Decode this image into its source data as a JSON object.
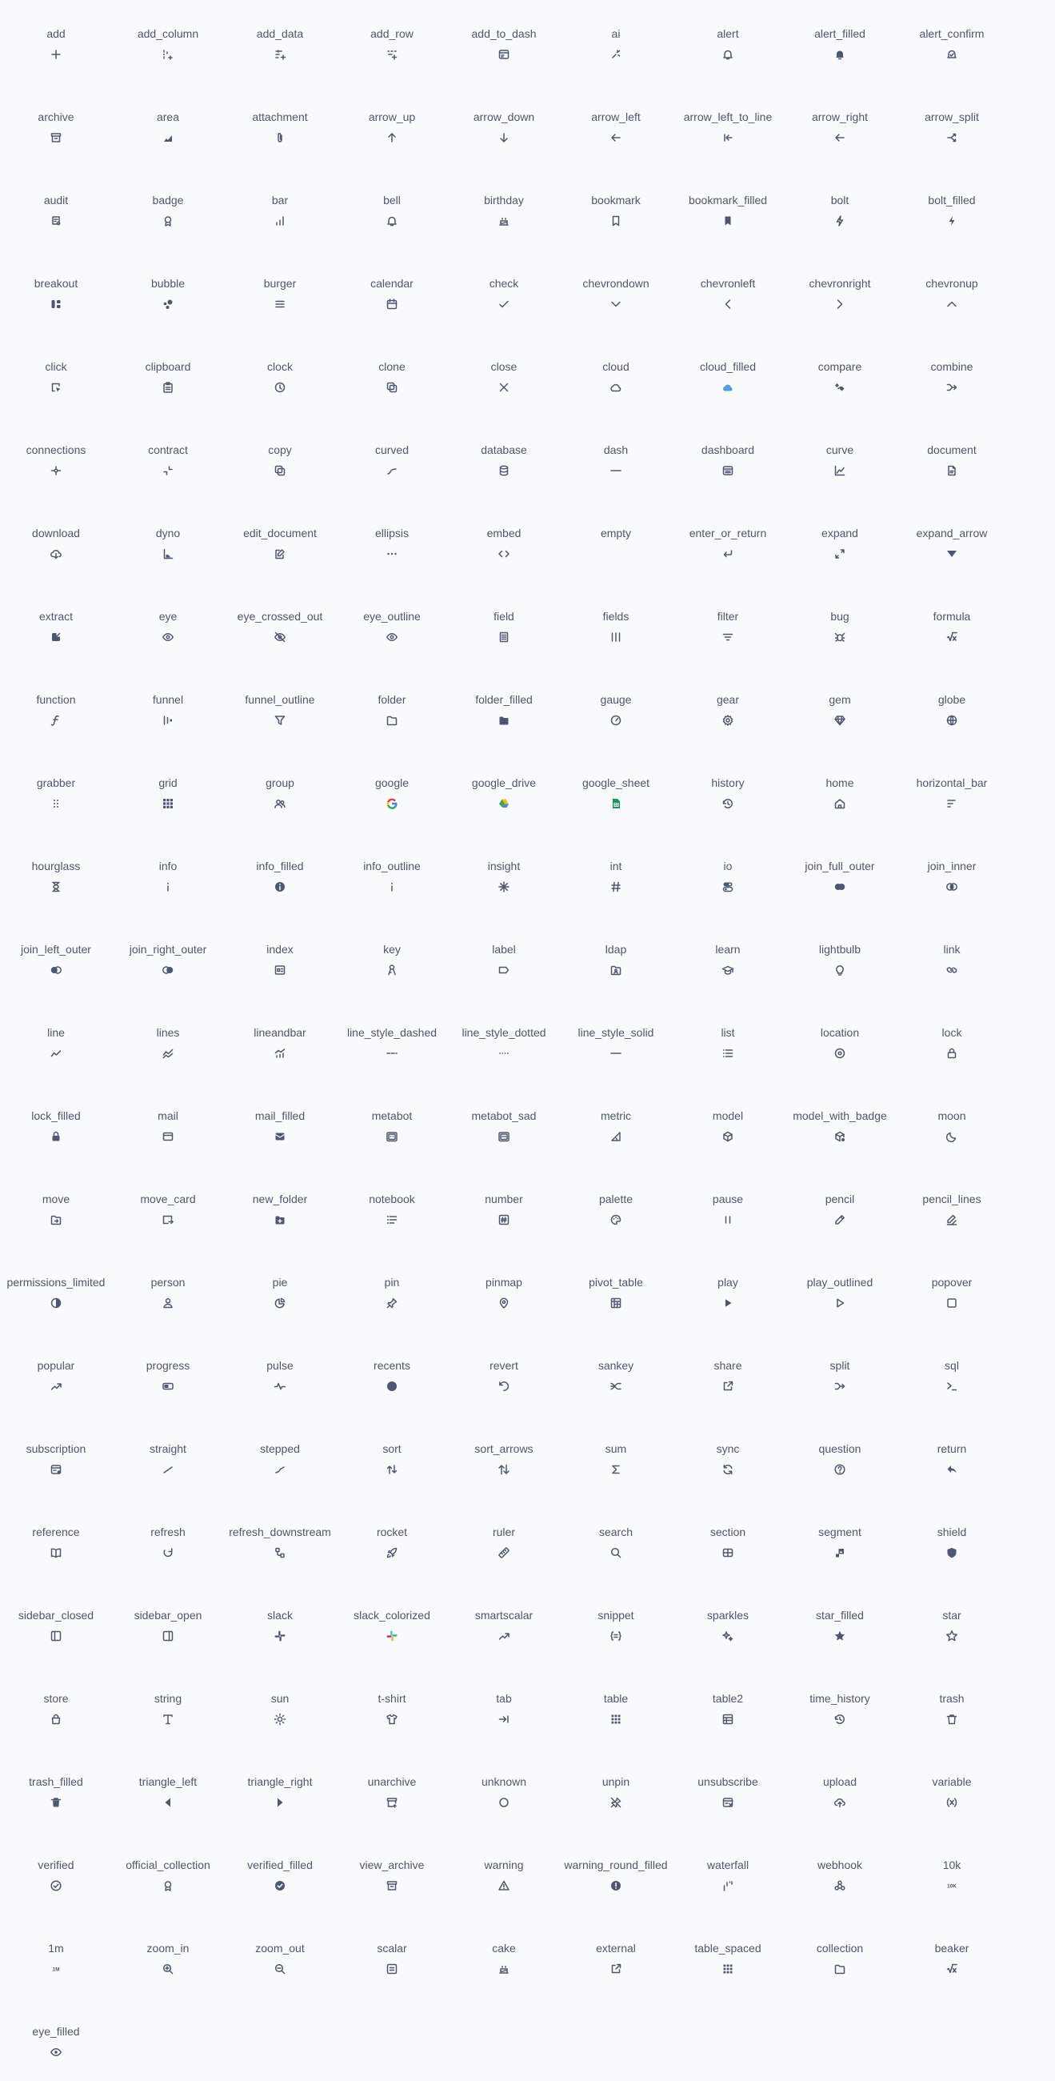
{
  "icons": [
    {
      "name": "add",
      "icon": "add-icon"
    },
    {
      "name": "add_column",
      "icon": "add_column-icon"
    },
    {
      "name": "add_data",
      "icon": "add_data-icon"
    },
    {
      "name": "add_row",
      "icon": "add_row-icon"
    },
    {
      "name": "add_to_dash",
      "icon": "add_to_dash-icon"
    },
    {
      "name": "ai",
      "icon": "ai-icon"
    },
    {
      "name": "alert",
      "icon": "alert-icon"
    },
    {
      "name": "alert_filled",
      "icon": "alert_filled-icon"
    },
    {
      "name": "alert_confirm",
      "icon": "alert_confirm-icon"
    },
    {
      "name": "archive",
      "icon": "archive-icon"
    },
    {
      "name": "area",
      "icon": "area-icon"
    },
    {
      "name": "attachment",
      "icon": "attachment-icon"
    },
    {
      "name": "arrow_up",
      "icon": "arrow_up-icon"
    },
    {
      "name": "arrow_down",
      "icon": "arrow_down-icon"
    },
    {
      "name": "arrow_left",
      "icon": "arrow_left-icon"
    },
    {
      "name": "arrow_left_to_line",
      "icon": "arrow_left_to_line-icon"
    },
    {
      "name": "arrow_right",
      "icon": "arrow_right-icon"
    },
    {
      "name": "arrow_split",
      "icon": "arrow_split-icon"
    },
    {
      "name": "audit",
      "icon": "audit-icon"
    },
    {
      "name": "badge",
      "icon": "badge-icon"
    },
    {
      "name": "bar",
      "icon": "bar-icon"
    },
    {
      "name": "bell",
      "icon": "bell-icon"
    },
    {
      "name": "birthday",
      "icon": "birthday-icon"
    },
    {
      "name": "bookmark",
      "icon": "bookmark-icon"
    },
    {
      "name": "bookmark_filled",
      "icon": "bookmark_filled-icon"
    },
    {
      "name": "bolt",
      "icon": "bolt-icon"
    },
    {
      "name": "bolt_filled",
      "icon": "bolt_filled-icon"
    },
    {
      "name": "breakout",
      "icon": "breakout-icon"
    },
    {
      "name": "bubble",
      "icon": "bubble-icon"
    },
    {
      "name": "burger",
      "icon": "burger-icon"
    },
    {
      "name": "calendar",
      "icon": "calendar-icon"
    },
    {
      "name": "check",
      "icon": "check-icon"
    },
    {
      "name": "chevrondown",
      "icon": "chevrondown-icon"
    },
    {
      "name": "chevronleft",
      "icon": "chevronleft-icon"
    },
    {
      "name": "chevronright",
      "icon": "chevronright-icon"
    },
    {
      "name": "chevronup",
      "icon": "chevronup-icon"
    },
    {
      "name": "click",
      "icon": "click-icon"
    },
    {
      "name": "clipboard",
      "icon": "clipboard-icon"
    },
    {
      "name": "clock",
      "icon": "clock-icon"
    },
    {
      "name": "clone",
      "icon": "clone-icon"
    },
    {
      "name": "close",
      "icon": "close-icon"
    },
    {
      "name": "cloud",
      "icon": "cloud-icon"
    },
    {
      "name": "cloud_filled",
      "icon": "cloud_filled-icon"
    },
    {
      "name": "compare",
      "icon": "compare-icon"
    },
    {
      "name": "combine",
      "icon": "combine-icon"
    },
    {
      "name": "connections",
      "icon": "connections-icon"
    },
    {
      "name": "contract",
      "icon": "contract-icon"
    },
    {
      "name": "copy",
      "icon": "copy-icon"
    },
    {
      "name": "curved",
      "icon": "curved-icon"
    },
    {
      "name": "database",
      "icon": "database-icon"
    },
    {
      "name": "dash",
      "icon": "dash-icon"
    },
    {
      "name": "dashboard",
      "icon": "dashboard-icon"
    },
    {
      "name": "curve",
      "icon": "curve-icon"
    },
    {
      "name": "document",
      "icon": "document-icon"
    },
    {
      "name": "download",
      "icon": "download-icon"
    },
    {
      "name": "dyno",
      "icon": "dyno-icon"
    },
    {
      "name": "edit_document",
      "icon": "edit_document-icon"
    },
    {
      "name": "ellipsis",
      "icon": "ellipsis-icon"
    },
    {
      "name": "embed",
      "icon": "embed-icon"
    },
    {
      "name": "empty",
      "icon": "empty-icon"
    },
    {
      "name": "enter_or_return",
      "icon": "enter_or_return-icon"
    },
    {
      "name": "expand",
      "icon": "expand-icon"
    },
    {
      "name": "expand_arrow",
      "icon": "expand_arrow-icon"
    },
    {
      "name": "extract",
      "icon": "extract-icon"
    },
    {
      "name": "eye",
      "icon": "eye-icon"
    },
    {
      "name": "eye_crossed_out",
      "icon": "eye_crossed_out-icon"
    },
    {
      "name": "eye_outline",
      "icon": "eye_outline-icon"
    },
    {
      "name": "field",
      "icon": "field-icon"
    },
    {
      "name": "fields",
      "icon": "fields-icon"
    },
    {
      "name": "filter",
      "icon": "filter-icon"
    },
    {
      "name": "bug",
      "icon": "bug-icon"
    },
    {
      "name": "formula",
      "icon": "formula-icon"
    },
    {
      "name": "function",
      "icon": "function-icon"
    },
    {
      "name": "funnel",
      "icon": "funnel-icon"
    },
    {
      "name": "funnel_outline",
      "icon": "funnel_outline-icon"
    },
    {
      "name": "folder",
      "icon": "folder-icon"
    },
    {
      "name": "folder_filled",
      "icon": "folder_filled-icon"
    },
    {
      "name": "gauge",
      "icon": "gauge-icon"
    },
    {
      "name": "gear",
      "icon": "gear-icon"
    },
    {
      "name": "gem",
      "icon": "gem-icon"
    },
    {
      "name": "globe",
      "icon": "globe-icon"
    },
    {
      "name": "grabber",
      "icon": "grabber-icon"
    },
    {
      "name": "grid",
      "icon": "grid-icon"
    },
    {
      "name": "group",
      "icon": "group-icon"
    },
    {
      "name": "google",
      "icon": "google-icon"
    },
    {
      "name": "google_drive",
      "icon": "google_drive-icon"
    },
    {
      "name": "google_sheet",
      "icon": "google_sheet-icon"
    },
    {
      "name": "history",
      "icon": "history-icon"
    },
    {
      "name": "home",
      "icon": "home-icon"
    },
    {
      "name": "horizontal_bar",
      "icon": "horizontal_bar-icon"
    },
    {
      "name": "hourglass",
      "icon": "hourglass-icon"
    },
    {
      "name": "info",
      "icon": "info-icon"
    },
    {
      "name": "info_filled",
      "icon": "info_filled-icon"
    },
    {
      "name": "info_outline",
      "icon": "info_outline-icon"
    },
    {
      "name": "insight",
      "icon": "insight-icon"
    },
    {
      "name": "int",
      "icon": "int-icon"
    },
    {
      "name": "io",
      "icon": "io-icon"
    },
    {
      "name": "join_full_outer",
      "icon": "join_full_outer-icon"
    },
    {
      "name": "join_inner",
      "icon": "join_inner-icon"
    },
    {
      "name": "join_left_outer",
      "icon": "join_left_outer-icon"
    },
    {
      "name": "join_right_outer",
      "icon": "join_right_outer-icon"
    },
    {
      "name": "index",
      "icon": "index-icon"
    },
    {
      "name": "key",
      "icon": "key-icon"
    },
    {
      "name": "label",
      "icon": "label-icon"
    },
    {
      "name": "ldap",
      "icon": "ldap-icon"
    },
    {
      "name": "learn",
      "icon": "learn-icon"
    },
    {
      "name": "lightbulb",
      "icon": "lightbulb-icon"
    },
    {
      "name": "link",
      "icon": "link-icon"
    },
    {
      "name": "line",
      "icon": "line-icon"
    },
    {
      "name": "lines",
      "icon": "lines-icon"
    },
    {
      "name": "lineandbar",
      "icon": "lineandbar-icon"
    },
    {
      "name": "line_style_dashed",
      "icon": "line_style_dashed-icon"
    },
    {
      "name": "line_style_dotted",
      "icon": "line_style_dotted-icon"
    },
    {
      "name": "line_style_solid",
      "icon": "line_style_solid-icon"
    },
    {
      "name": "list",
      "icon": "list-icon"
    },
    {
      "name": "location",
      "icon": "location-icon"
    },
    {
      "name": "lock",
      "icon": "lock-icon"
    },
    {
      "name": "lock_filled",
      "icon": "lock_filled-icon"
    },
    {
      "name": "mail",
      "icon": "mail-icon"
    },
    {
      "name": "mail_filled",
      "icon": "mail_filled-icon"
    },
    {
      "name": "metabot",
      "icon": "metabot-icon"
    },
    {
      "name": "metabot_sad",
      "icon": "metabot_sad-icon"
    },
    {
      "name": "metric",
      "icon": "metric-icon"
    },
    {
      "name": "model",
      "icon": "model-icon"
    },
    {
      "name": "model_with_badge",
      "icon": "model_with_badge-icon"
    },
    {
      "name": "moon",
      "icon": "moon-icon"
    },
    {
      "name": "move",
      "icon": "move-icon"
    },
    {
      "name": "move_card",
      "icon": "move_card-icon"
    },
    {
      "name": "new_folder",
      "icon": "new_folder-icon"
    },
    {
      "name": "notebook",
      "icon": "notebook-icon"
    },
    {
      "name": "number",
      "icon": "number-icon"
    },
    {
      "name": "palette",
      "icon": "palette-icon"
    },
    {
      "name": "pause",
      "icon": "pause-icon"
    },
    {
      "name": "pencil",
      "icon": "pencil-icon"
    },
    {
      "name": "pencil_lines",
      "icon": "pencil_lines-icon"
    },
    {
      "name": "permissions_limited",
      "icon": "permissions_limited-icon"
    },
    {
      "name": "person",
      "icon": "person-icon"
    },
    {
      "name": "pie",
      "icon": "pie-icon"
    },
    {
      "name": "pin",
      "icon": "pin-icon"
    },
    {
      "name": "pinmap",
      "icon": "pinmap-icon"
    },
    {
      "name": "pivot_table",
      "icon": "pivot_table-icon"
    },
    {
      "name": "play",
      "icon": "play-icon"
    },
    {
      "name": "play_outlined",
      "icon": "play_outlined-icon"
    },
    {
      "name": "popover",
      "icon": "popover-icon"
    },
    {
      "name": "popular",
      "icon": "popular-icon"
    },
    {
      "name": "progress",
      "icon": "progress-icon"
    },
    {
      "name": "pulse",
      "icon": "pulse-icon"
    },
    {
      "name": "recents",
      "icon": "recents-icon"
    },
    {
      "name": "revert",
      "icon": "revert-icon"
    },
    {
      "name": "sankey",
      "icon": "sankey-icon"
    },
    {
      "name": "share",
      "icon": "share-icon"
    },
    {
      "name": "split",
      "icon": "split-icon"
    },
    {
      "name": "sql",
      "icon": "sql-icon"
    },
    {
      "name": "subscription",
      "icon": "subscription-icon"
    },
    {
      "name": "straight",
      "icon": "straight-icon"
    },
    {
      "name": "stepped",
      "icon": "stepped-icon"
    },
    {
      "name": "sort",
      "icon": "sort-icon"
    },
    {
      "name": "sort_arrows",
      "icon": "sort_arrows-icon"
    },
    {
      "name": "sum",
      "icon": "sum-icon"
    },
    {
      "name": "sync",
      "icon": "sync-icon"
    },
    {
      "name": "question",
      "icon": "question-icon"
    },
    {
      "name": "return",
      "icon": "return-icon"
    },
    {
      "name": "reference",
      "icon": "reference-icon"
    },
    {
      "name": "refresh",
      "icon": "refresh-icon"
    },
    {
      "name": "refresh_downstream",
      "icon": "refresh_downstream-icon"
    },
    {
      "name": "rocket",
      "icon": "rocket-icon"
    },
    {
      "name": "ruler",
      "icon": "ruler-icon"
    },
    {
      "name": "search",
      "icon": "search-icon"
    },
    {
      "name": "section",
      "icon": "section-icon"
    },
    {
      "name": "segment",
      "icon": "segment-icon"
    },
    {
      "name": "shield",
      "icon": "shield-icon"
    },
    {
      "name": "sidebar_closed",
      "icon": "sidebar_closed-icon"
    },
    {
      "name": "sidebar_open",
      "icon": "sidebar_open-icon"
    },
    {
      "name": "slack",
      "icon": "slack-icon"
    },
    {
      "name": "slack_colorized",
      "icon": "slack_colorized-icon"
    },
    {
      "name": "smartscalar",
      "icon": "smartscalar-icon"
    },
    {
      "name": "snippet",
      "icon": "snippet-icon"
    },
    {
      "name": "sparkles",
      "icon": "sparkles-icon"
    },
    {
      "name": "star_filled",
      "icon": "star_filled-icon"
    },
    {
      "name": "star",
      "icon": "star-icon"
    },
    {
      "name": "store",
      "icon": "store-icon"
    },
    {
      "name": "string",
      "icon": "string-icon"
    },
    {
      "name": "sun",
      "icon": "sun-icon"
    },
    {
      "name": "t-shirt",
      "icon": "t-shirt-icon"
    },
    {
      "name": "tab",
      "icon": "tab-icon"
    },
    {
      "name": "table",
      "icon": "table-icon"
    },
    {
      "name": "table2",
      "icon": "table2-icon"
    },
    {
      "name": "time_history",
      "icon": "time_history-icon"
    },
    {
      "name": "trash",
      "icon": "trash-icon"
    },
    {
      "name": "trash_filled",
      "icon": "trash_filled-icon"
    },
    {
      "name": "triangle_left",
      "icon": "triangle_left-icon"
    },
    {
      "name": "triangle_right",
      "icon": "triangle_right-icon"
    },
    {
      "name": "unarchive",
      "icon": "unarchive-icon"
    },
    {
      "name": "unknown",
      "icon": "unknown-icon"
    },
    {
      "name": "unpin",
      "icon": "unpin-icon"
    },
    {
      "name": "unsubscribe",
      "icon": "unsubscribe-icon"
    },
    {
      "name": "upload",
      "icon": "upload-icon"
    },
    {
      "name": "variable",
      "icon": "variable-icon"
    },
    {
      "name": "verified",
      "icon": "verified-icon"
    },
    {
      "name": "official_collection",
      "icon": "official_collection-icon"
    },
    {
      "name": "verified_filled",
      "icon": "verified_filled-icon"
    },
    {
      "name": "view_archive",
      "icon": "view_archive-icon"
    },
    {
      "name": "warning",
      "icon": "warning-icon"
    },
    {
      "name": "warning_round_filled",
      "icon": "warning_round_filled-icon"
    },
    {
      "name": "waterfall",
      "icon": "waterfall-icon"
    },
    {
      "name": "webhook",
      "icon": "webhook-icon"
    },
    {
      "name": "10k",
      "icon": "10k-icon"
    },
    {
      "name": "1m",
      "icon": "1m-icon"
    },
    {
      "name": "zoom_in",
      "icon": "zoom_in-icon"
    },
    {
      "name": "zoom_out",
      "icon": "zoom_out-icon"
    },
    {
      "name": "scalar",
      "icon": "scalar-icon"
    },
    {
      "name": "cake",
      "icon": "cake-icon"
    },
    {
      "name": "external",
      "icon": "external-icon"
    },
    {
      "name": "table_spaced",
      "icon": "table_spaced-icon"
    },
    {
      "name": "collection",
      "icon": "collection-icon"
    },
    {
      "name": "beaker",
      "icon": "beaker-icon"
    },
    {
      "name": "eye_filled",
      "icon": "eye_filled-icon"
    }
  ],
  "colors": {
    "background": "#f9fafb",
    "text": "#4c5773",
    "icon": "#4c5773",
    "cloud_filled": "#509ee3",
    "google_blue": "#4285f4",
    "google_red": "#ea4335",
    "google_yellow": "#fbbc05",
    "google_green": "#34a853",
    "sheet_green": "#0f9d58",
    "slack_blue": "#36c5f0",
    "slack_green": "#2eb67d",
    "slack_red": "#e01e5a",
    "slack_yellow": "#ecb22e"
  }
}
